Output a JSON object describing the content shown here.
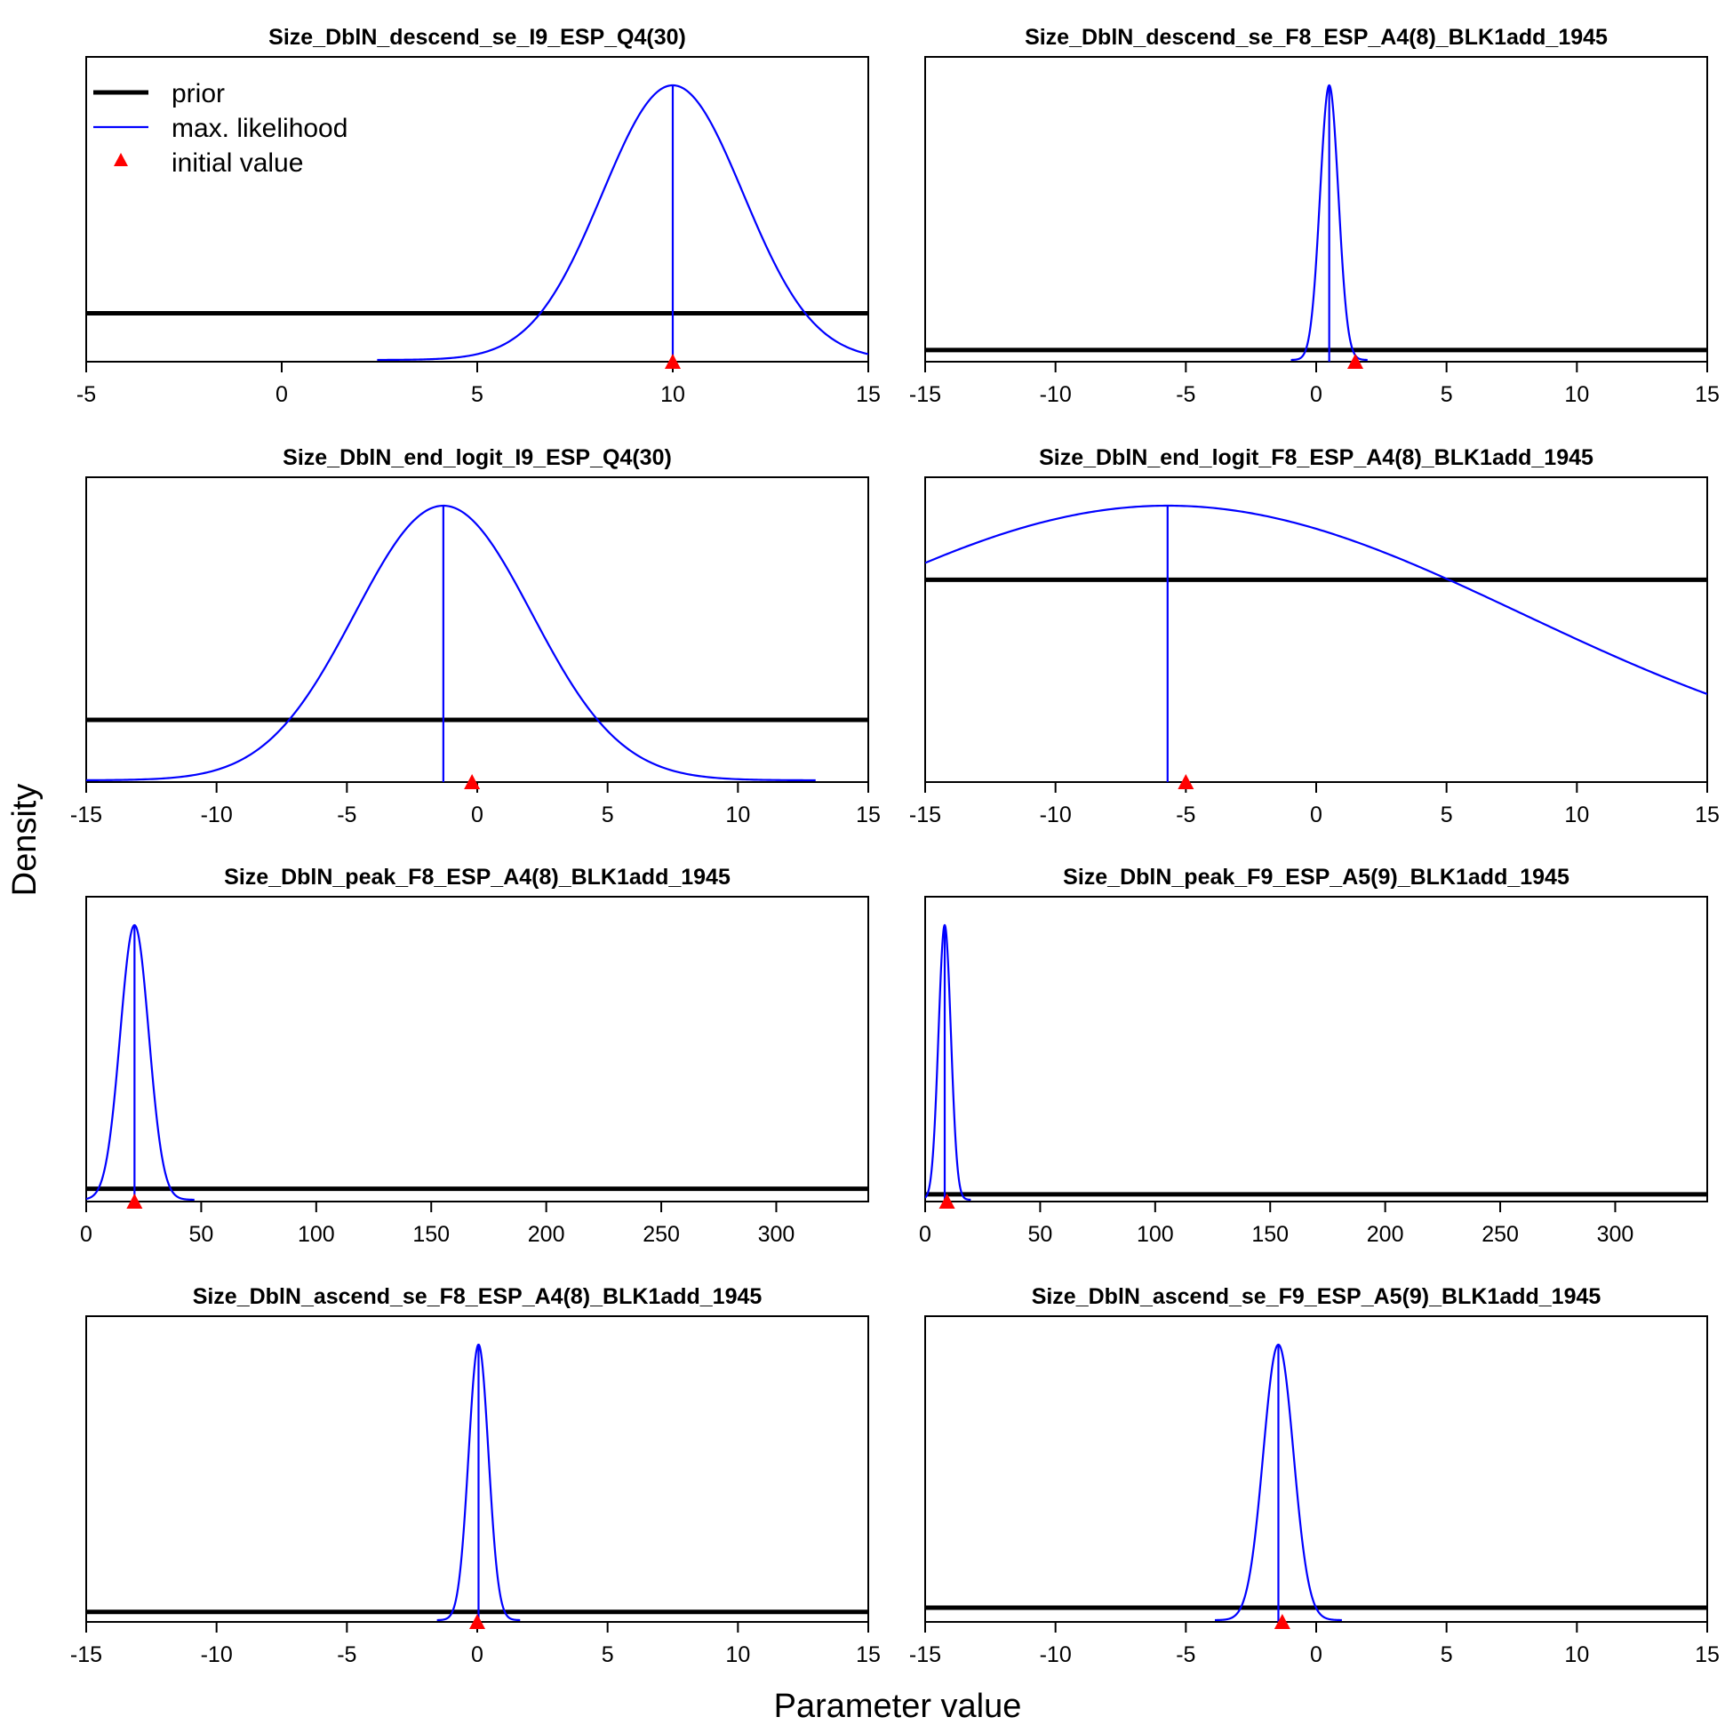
{
  "xlabel": "Parameter value",
  "ylabel": "Density",
  "legend": {
    "placement": "top-left of first panel",
    "entries": [
      {
        "label": "prior",
        "color": "#000000"
      },
      {
        "label": "max. likelihood",
        "color": "#0000ff"
      },
      {
        "label": "initial value",
        "color": "#ff0000"
      }
    ]
  },
  "colors": {
    "prior": "#000000",
    "mle": "#0000ff",
    "initial": "#ff0000"
  },
  "chart_data": [
    {
      "type": "line",
      "title": "Size_DblN_descend_se_I9_ESP_Q4(30)",
      "xlim": [
        -5,
        15
      ],
      "xticks": [
        -5,
        0,
        5,
        10,
        15
      ],
      "mle": {
        "mean": 10,
        "sd": 1.8
      },
      "prior_level": 0.17,
      "initial": 10
    },
    {
      "type": "line",
      "title": "Size_DblN_descend_se_F8_ESP_A4(8)_BLK1add_1945",
      "xlim": [
        -15,
        15
      ],
      "xticks": [
        -15,
        -10,
        -5,
        0,
        5,
        10,
        15
      ],
      "mle": {
        "mean": 0.5,
        "sd": 0.35
      },
      "prior_level": 0.036,
      "initial": 1.5
    },
    {
      "type": "line",
      "title": "Size_DblN_end_logit_I9_ESP_Q4(30)",
      "xlim": [
        -15,
        15
      ],
      "xticks": [
        -15,
        -10,
        -5,
        0,
        5,
        10,
        15
      ],
      "mle": {
        "mean": -1.3,
        "sd": 3.4
      },
      "prior_level": 0.22,
      "initial": -0.2
    },
    {
      "type": "line",
      "title": "Size_DblN_end_logit_F8_ESP_A4(8)_BLK1add_1945",
      "xlim": [
        -15,
        15
      ],
      "xticks": [
        -15,
        -10,
        -5,
        0,
        5,
        10,
        15
      ],
      "mle": {
        "mean": -5.7,
        "sd": 13.6
      },
      "prior_level": 0.73,
      "initial": -5
    },
    {
      "type": "line",
      "title": "Size_DblN_peak_F8_ESP_A4(8)_BLK1add_1945",
      "xlim": [
        0,
        340
      ],
      "xticks": [
        0,
        50,
        100,
        150,
        200,
        250,
        300
      ],
      "mle": {
        "mean": 21,
        "sd": 6.2
      },
      "prior_level": 0.04,
      "initial": 21
    },
    {
      "type": "line",
      "title": "Size_DblN_peak_F9_ESP_A5(9)_BLK1add_1945",
      "xlim": [
        0,
        340
      ],
      "xticks": [
        0,
        50,
        100,
        150,
        200,
        250,
        300
      ],
      "mle": {
        "mean": 8.5,
        "sd": 2.7
      },
      "prior_level": 0.02,
      "initial": 9.5
    },
    {
      "type": "line",
      "title": "Size_DblN_ascend_se_F8_ESP_A4(8)_BLK1add_1945",
      "xlim": [
        -15,
        15
      ],
      "xticks": [
        -15,
        -10,
        -5,
        0,
        5,
        10,
        15
      ],
      "mle": {
        "mean": 0.05,
        "sd": 0.38
      },
      "prior_level": 0.03,
      "initial": 0
    },
    {
      "type": "line",
      "title": "Size_DblN_ascend_se_F9_ESP_A5(9)_BLK1add_1945",
      "xlim": [
        -15,
        15
      ],
      "xticks": [
        -15,
        -10,
        -5,
        0,
        5,
        10,
        15
      ],
      "mle": {
        "mean": -1.45,
        "sd": 0.58
      },
      "prior_level": 0.045,
      "initial": -1.3
    }
  ]
}
